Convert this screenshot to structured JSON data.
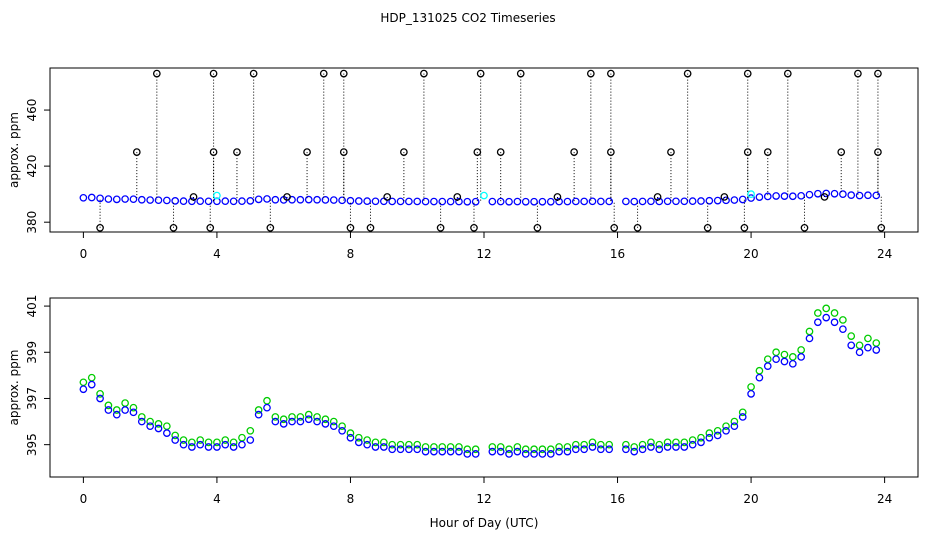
{
  "chart_data": [
    {
      "type": "scatter",
      "title": "HDP_131025  CO2 Timeseries",
      "ylabel": "approx. ppm",
      "xlim": [
        -1,
        25
      ],
      "ylim": [
        373,
        490
      ],
      "xticks": [
        0,
        4,
        8,
        12,
        16,
        20,
        24
      ],
      "yticks": [
        380,
        420,
        460
      ],
      "series": [
        {
          "color": "#0000ff",
          "x": [
            0,
            0.25,
            0.5,
            0.75,
            1,
            1.25,
            1.5,
            1.75,
            2,
            2.25,
            2.5,
            2.75,
            3,
            3.25,
            3.5,
            3.75,
            4,
            4.25,
            4.5,
            4.75,
            5,
            5.25,
            5.5,
            5.75,
            6,
            6.25,
            6.5,
            6.75,
            7,
            7.25,
            7.5,
            7.75,
            8,
            8.25,
            8.5,
            8.75,
            9,
            9.25,
            9.5,
            9.75,
            10,
            10.25,
            10.5,
            10.75,
            11,
            11.25,
            11.5,
            11.75,
            12,
            12.25,
            12.5,
            12.75,
            13,
            13.25,
            13.5,
            13.75,
            14,
            14.25,
            14.5,
            14.75,
            15,
            15.25,
            15.5,
            15.75,
            16,
            16.25,
            16.5,
            16.75,
            17,
            17.25,
            17.5,
            17.75,
            18,
            18.25,
            18.5,
            18.75,
            19,
            19.25,
            19.5,
            19.75,
            20,
            20.25,
            20.5,
            20.75,
            21,
            21.25,
            21.5,
            21.75,
            22,
            22.25,
            22.5,
            22.75,
            23,
            23.25,
            23.5,
            23.75
          ],
          "values": [
            397.4,
            397.6,
            397.0,
            396.5,
            396.3,
            396.5,
            396.4,
            396.0,
            395.8,
            395.7,
            395.5,
            395.2,
            395.0,
            394.9,
            395.0,
            394.9,
            394.9,
            395.0,
            394.9,
            395.0,
            395.2,
            396.3,
            396.6,
            396.0,
            395.9,
            396.0,
            396.0,
            396.1,
            396.0,
            395.9,
            395.8,
            395.6,
            395.3,
            395.1,
            395.0,
            394.9,
            394.9,
            394.8,
            394.8,
            394.8,
            394.8,
            394.7,
            394.7,
            394.7,
            394.7,
            394.7,
            394.6,
            394.6,
            null,
            394.7,
            394.7,
            394.6,
            394.7,
            394.6,
            394.6,
            394.6,
            394.6,
            394.7,
            394.7,
            394.8,
            394.8,
            394.9,
            394.8,
            394.8,
            null,
            394.8,
            394.7,
            394.8,
            394.9,
            394.8,
            394.9,
            394.9,
            394.9,
            395.0,
            395.1,
            395.3,
            395.4,
            395.6,
            395.8,
            396.2,
            397.2,
            397.9,
            398.4,
            398.7,
            398.6,
            398.5,
            398.8,
            399.6,
            400.3,
            400.5,
            400.3,
            400.0,
            399.3,
            399.0,
            399.2,
            399.1
          ]
        },
        {
          "color": "#000000",
          "line": "dotted",
          "x": [
            0.5,
            1.6,
            2.2,
            2.7,
            3.3,
            3.8,
            3.9,
            3.9,
            4.6,
            5.1,
            5.6,
            6.1,
            6.7,
            7.2,
            7.8,
            7.8,
            8.0,
            8.6,
            9.1,
            9.6,
            10.2,
            10.7,
            11.2,
            11.7,
            11.8,
            11.9,
            12.5,
            13.1,
            13.6,
            14.2,
            14.7,
            15.2,
            15.8,
            15.8,
            15.9,
            16.6,
            17.2,
            17.6,
            18.1,
            18.7,
            19.2,
            19.8,
            19.9,
            19.9,
            20.5,
            21.1,
            21.6,
            22.2,
            22.7,
            23.2,
            23.8,
            23.8,
            23.9
          ],
          "values": [
            376,
            430,
            486,
            376,
            398,
            376,
            430,
            486,
            430,
            486,
            376,
            398,
            430,
            486,
            486,
            430,
            376,
            376,
            398,
            430,
            486,
            376,
            398,
            376,
            430,
            486,
            430,
            486,
            376,
            398,
            430,
            486,
            486,
            430,
            376,
            376,
            398,
            430,
            486,
            376,
            398,
            376,
            430,
            486,
            430,
            486,
            376,
            398,
            430,
            486,
            486,
            430,
            376
          ]
        },
        {
          "color": "#00ffff",
          "x": [
            4.0,
            12.0,
            20.0
          ],
          "values": [
            399,
            399,
            400
          ]
        }
      ]
    },
    {
      "type": "scatter",
      "ylabel": "approx. ppm",
      "xlabel": "Hour of Day (UTC)",
      "xlim": [
        -1,
        25
      ],
      "ylim": [
        393.6,
        401.35
      ],
      "xticks": [
        0,
        4,
        8,
        12,
        16,
        20,
        24
      ],
      "yticks": [
        395,
        397,
        399,
        401
      ],
      "series": [
        {
          "color": "#00cc00",
          "x": [
            0,
            0.25,
            0.5,
            0.75,
            1,
            1.25,
            1.5,
            1.75,
            2,
            2.25,
            2.5,
            2.75,
            3,
            3.25,
            3.5,
            3.75,
            4,
            4.25,
            4.5,
            4.75,
            5,
            5.25,
            5.5,
            5.75,
            6,
            6.25,
            6.5,
            6.75,
            7,
            7.25,
            7.5,
            7.75,
            8,
            8.25,
            8.5,
            8.75,
            9,
            9.25,
            9.5,
            9.75,
            10,
            10.25,
            10.5,
            10.75,
            11,
            11.25,
            11.5,
            11.75,
            12,
            12.25,
            12.5,
            12.75,
            13,
            13.25,
            13.5,
            13.75,
            14,
            14.25,
            14.5,
            14.75,
            15,
            15.25,
            15.5,
            15.75,
            16,
            16.25,
            16.5,
            16.75,
            17,
            17.25,
            17.5,
            17.75,
            18,
            18.25,
            18.5,
            18.75,
            19,
            19.25,
            19.5,
            19.75,
            20,
            20.25,
            20.5,
            20.75,
            21,
            21.25,
            21.5,
            21.75,
            22,
            22.25,
            22.5,
            22.75,
            23,
            23.25,
            23.5,
            23.75
          ],
          "values": [
            397.7,
            397.9,
            397.2,
            396.7,
            396.5,
            396.8,
            396.6,
            396.2,
            396.0,
            395.9,
            395.8,
            395.4,
            395.2,
            395.1,
            395.2,
            395.1,
            395.1,
            395.2,
            395.1,
            395.3,
            395.6,
            396.5,
            396.9,
            396.2,
            396.1,
            396.2,
            396.2,
            396.3,
            396.2,
            396.1,
            396.0,
            395.8,
            395.5,
            395.3,
            395.2,
            395.1,
            395.1,
            395.0,
            395.0,
            395.0,
            395.0,
            394.9,
            394.9,
            394.9,
            394.9,
            394.9,
            394.8,
            394.8,
            null,
            394.9,
            394.9,
            394.8,
            394.9,
            394.8,
            394.8,
            394.8,
            394.8,
            394.9,
            394.9,
            395.0,
            395.0,
            395.1,
            395.0,
            395.0,
            null,
            395.0,
            394.9,
            395.0,
            395.1,
            395.0,
            395.1,
            395.1,
            395.1,
            395.2,
            395.3,
            395.5,
            395.6,
            395.8,
            396.0,
            396.4,
            397.5,
            398.2,
            398.7,
            399.0,
            398.9,
            398.8,
            399.1,
            399.9,
            400.7,
            400.9,
            400.7,
            400.4,
            399.7,
            399.3,
            399.6,
            399.4
          ]
        },
        {
          "color": "#0000ff",
          "x": [
            0,
            0.25,
            0.5,
            0.75,
            1,
            1.25,
            1.5,
            1.75,
            2,
            2.25,
            2.5,
            2.75,
            3,
            3.25,
            3.5,
            3.75,
            4,
            4.25,
            4.5,
            4.75,
            5,
            5.25,
            5.5,
            5.75,
            6,
            6.25,
            6.5,
            6.75,
            7,
            7.25,
            7.5,
            7.75,
            8,
            8.25,
            8.5,
            8.75,
            9,
            9.25,
            9.5,
            9.75,
            10,
            10.25,
            10.5,
            10.75,
            11,
            11.25,
            11.5,
            11.75,
            12,
            12.25,
            12.5,
            12.75,
            13,
            13.25,
            13.5,
            13.75,
            14,
            14.25,
            14.5,
            14.75,
            15,
            15.25,
            15.5,
            15.75,
            16,
            16.25,
            16.5,
            16.75,
            17,
            17.25,
            17.5,
            17.75,
            18,
            18.25,
            18.5,
            18.75,
            19,
            19.25,
            19.5,
            19.75,
            20,
            20.25,
            20.5,
            20.75,
            21,
            21.25,
            21.5,
            21.75,
            22,
            22.25,
            22.5,
            22.75,
            23,
            23.25,
            23.5,
            23.75
          ],
          "values": [
            397.4,
            397.6,
            397.0,
            396.5,
            396.3,
            396.5,
            396.4,
            396.0,
            395.8,
            395.7,
            395.5,
            395.2,
            395.0,
            394.9,
            395.0,
            394.9,
            394.9,
            395.0,
            394.9,
            395.0,
            395.2,
            396.3,
            396.6,
            396.0,
            395.9,
            396.0,
            396.0,
            396.1,
            396.0,
            395.9,
            395.8,
            395.6,
            395.3,
            395.1,
            395.0,
            394.9,
            394.9,
            394.8,
            394.8,
            394.8,
            394.8,
            394.7,
            394.7,
            394.7,
            394.7,
            394.7,
            394.6,
            394.6,
            null,
            394.7,
            394.7,
            394.6,
            394.7,
            394.6,
            394.6,
            394.6,
            394.6,
            394.7,
            394.7,
            394.8,
            394.8,
            394.9,
            394.8,
            394.8,
            null,
            394.8,
            394.7,
            394.8,
            394.9,
            394.8,
            394.9,
            394.9,
            394.9,
            395.0,
            395.1,
            395.3,
            395.4,
            395.6,
            395.8,
            396.2,
            397.2,
            397.9,
            398.4,
            398.7,
            398.6,
            398.5,
            398.8,
            399.6,
            400.3,
            400.5,
            400.3,
            400.0,
            399.3,
            399.0,
            399.2,
            399.1
          ]
        }
      ]
    }
  ]
}
